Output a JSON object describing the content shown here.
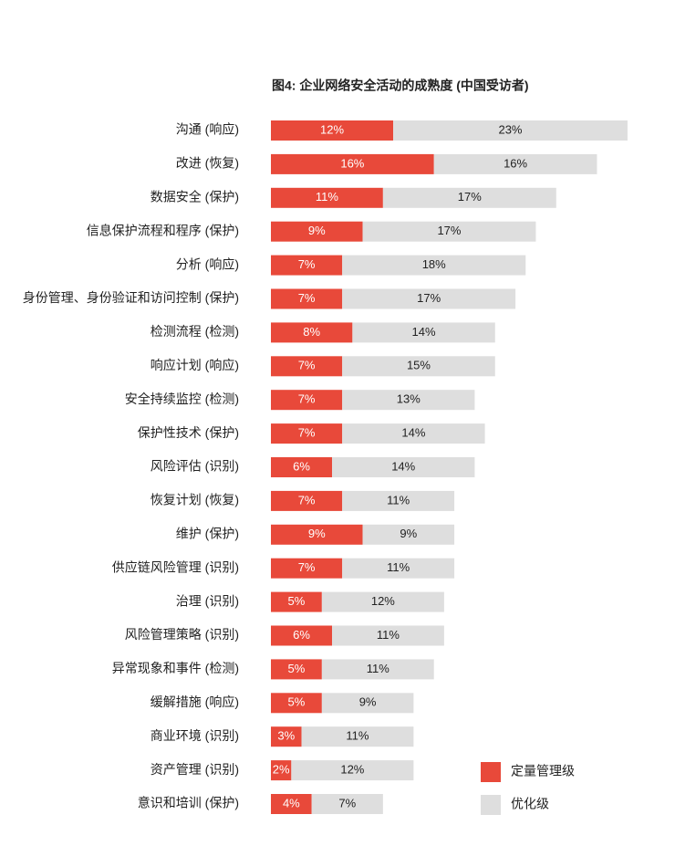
{
  "chart_data": {
    "type": "stacked-bar-horizontal",
    "title": "图4: 企业网络安全活动的成熟度 (中国受访者)",
    "categories": [
      "沟通 (响应)",
      "改进 (恢复)",
      "数据安全 (保护)",
      "信息保护流程和程序 (保护)",
      "分析 (响应)",
      "身份管理、身份验证和访问控制 (保护)",
      "检测流程 (检测)",
      "响应计划 (响应)",
      "安全持续监控 (检测)",
      "保护性技术 (保护)",
      "风险评估 (识别)",
      "恢复计划 (恢复)",
      "维护 (保护)",
      "供应链风险管理 (识别)",
      "治理 (识别)",
      "风险管理策略 (识别)",
      "异常现象和事件 (检测)",
      "缓解措施 (响应)",
      "商业环境 (识别)",
      "资产管理 (识别)",
      "意识和培训 (保护)"
    ],
    "series": [
      {
        "name": "定量管理级",
        "color": "#e8493a",
        "values": [
          12,
          16,
          11,
          9,
          7,
          7,
          8,
          7,
          7,
          7,
          6,
          7,
          9,
          7,
          5,
          6,
          5,
          5,
          3,
          2,
          4
        ],
        "value_labels": [
          "12%",
          "16%",
          "11%",
          "9%",
          "7%",
          "7%",
          "8%",
          "7%",
          "7%",
          "7%",
          "6%",
          "7%",
          "9%",
          "7%",
          "5%",
          "6%",
          "5%",
          "5%",
          "3%",
          "2%",
          "4%"
        ]
      },
      {
        "name": "优化级",
        "color": "#dedede",
        "values": [
          23,
          16,
          17,
          17,
          18,
          17,
          14,
          15,
          13,
          14,
          14,
          11,
          9,
          11,
          12,
          11,
          11,
          9,
          11,
          12,
          7
        ],
        "value_labels": [
          "23%",
          "16%",
          "17%",
          "17%",
          "18%",
          "17%",
          "14%",
          "15%",
          "13%",
          "14%",
          "14%",
          "11%",
          "9%",
          "11%",
          "12%",
          "11%",
          "11%",
          "9%",
          "11%",
          "12%",
          "7%"
        ]
      }
    ],
    "legend": "bottom-right"
  }
}
